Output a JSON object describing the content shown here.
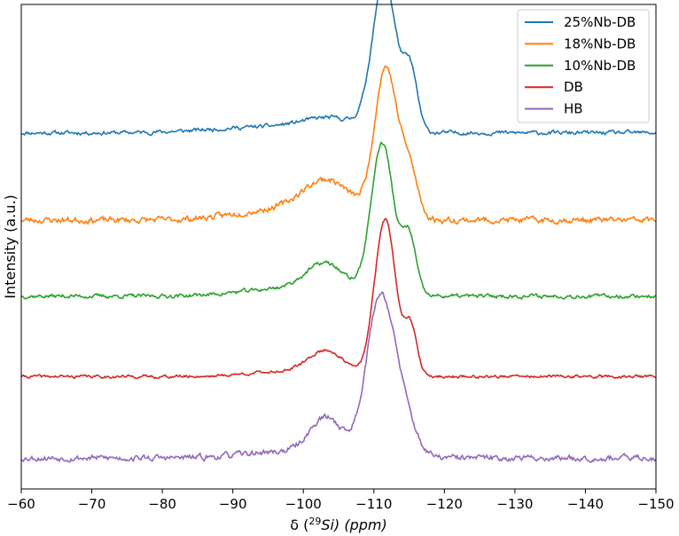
{
  "chart_data": {
    "type": "line",
    "xlabel_parts": {
      "pre": "δ (",
      "sup": "29",
      "mid": "Si",
      "post": ") (ppm)"
    },
    "ylabel": "Intensity (a.u.)",
    "xlim": [
      -60,
      -150
    ],
    "x_ticks": [
      -60,
      -70,
      -80,
      -90,
      -100,
      -110,
      -120,
      -130,
      -140,
      -150
    ],
    "x_tick_labels": [
      "−60",
      "−70",
      "−80",
      "−90",
      "−100",
      "−110",
      "−120",
      "−130",
      "−140",
      "−150"
    ],
    "ylim": [
      0,
      10
    ],
    "y_ticks_shown": false,
    "legend_position": "top-right",
    "series": [
      {
        "name": "25%Nb-DB",
        "color": "#1f77b4",
        "baseline": 7.35,
        "scale": 1.0,
        "noise": 0.04,
        "seed": 11
      },
      {
        "name": "18%Nb-DB",
        "color": "#ff7f0e",
        "baseline": 5.55,
        "scale": 1.0,
        "noise": 0.06,
        "seed": 23
      },
      {
        "name": "10%Nb-DB",
        "color": "#2ca02c",
        "baseline": 3.98,
        "scale": 1.0,
        "noise": 0.04,
        "seed": 37
      },
      {
        "name": "DB",
        "color": "#d62728",
        "baseline": 2.32,
        "scale": 1.0,
        "noise": 0.03,
        "seed": 41
      },
      {
        "name": "HB",
        "color": "#9467bd",
        "baseline": 0.64,
        "scale": 1.0,
        "noise": 0.06,
        "seed": 53
      }
    ],
    "peaks": {
      "25%Nb-DB": [
        [
          -111.5,
          3.1,
          1.7
        ],
        [
          -115.2,
          1.2,
          1.0
        ],
        [
          -104,
          0.25,
          4
        ],
        [
          -95,
          0.12,
          8
        ]
      ],
      "18%Nb-DB": [
        [
          -111.7,
          3.1,
          1.6
        ],
        [
          -115.0,
          1.0,
          1.2
        ],
        [
          -103.5,
          0.75,
          3.5
        ],
        [
          -96,
          0.2,
          6
        ]
      ],
      "10%Nb-DB": [
        [
          -111.2,
          3.15,
          1.6
        ],
        [
          -115.0,
          1.2,
          1.0
        ],
        [
          -103.2,
          0.6,
          2.8
        ],
        [
          -97,
          0.15,
          6
        ]
      ],
      "DB": [
        [
          -111.6,
          3.25,
          1.5
        ],
        [
          -115.2,
          1.0,
          0.9
        ],
        [
          -103.3,
          0.5,
          2.5
        ],
        [
          -97,
          0.1,
          5
        ]
      ],
      "HB": [
        [
          -110.8,
          3.2,
          1.9
        ],
        [
          -114.0,
          0.9,
          1.8
        ],
        [
          -103.3,
          0.8,
          2.4
        ],
        [
          -96,
          0.12,
          5
        ]
      ]
    }
  }
}
